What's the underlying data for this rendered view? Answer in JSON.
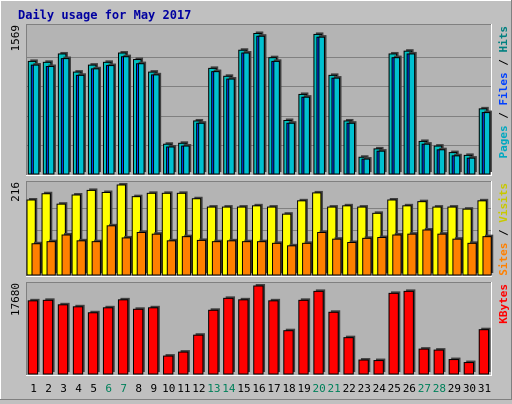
{
  "title": "Daily usage for May 2017",
  "colors": {
    "background": "#c0c0c0",
    "plot_bg": "#b4b4b4",
    "title": "#0000a0",
    "hits": "#00c0c0",
    "files": "#0040ff",
    "pages": "#00c0d0",
    "visits": "#ffff00",
    "sites": "#ff8000",
    "kbytes": "#ff0000",
    "grid": "#808080",
    "weekend_day": "#00805a"
  },
  "legends": {
    "top": [
      {
        "text": "Pages",
        "color": "#00a8c0"
      },
      {
        "text": " / ",
        "color": "#000000"
      },
      {
        "text": "Files",
        "color": "#0040ff"
      },
      {
        "text": " / ",
        "color": "#000000"
      },
      {
        "text": "Hits",
        "color": "#008080"
      }
    ],
    "middle": [
      {
        "text": "Sites",
        "color": "#ff8000"
      },
      {
        "text": " / ",
        "color": "#000000"
      },
      {
        "text": "Visits",
        "color": "#c8c800"
      }
    ],
    "bottom": [
      {
        "text": "KBytes",
        "color": "#ff0000"
      }
    ]
  },
  "chart_data": {
    "type": "bar",
    "title": "Daily usage for May 2017",
    "categories": [
      "1",
      "2",
      "3",
      "4",
      "5",
      "6",
      "7",
      "8",
      "9",
      "10",
      "11",
      "12",
      "13",
      "14",
      "15",
      "16",
      "17",
      "18",
      "19",
      "20",
      "21",
      "22",
      "23",
      "24",
      "25",
      "26",
      "27",
      "28",
      "29",
      "30",
      "31"
    ],
    "weekend_days": [
      "6",
      "7",
      "13",
      "14",
      "20",
      "21",
      "27",
      "28"
    ],
    "panels": [
      {
        "id": "top",
        "max_label": "1569",
        "ylim": [
          0,
          1569
        ],
        "series": [
          {
            "name": "Hits",
            "values": [
              1210,
              1200,
              1290,
              1095,
              1170,
              1200,
              1300,
              1230,
              1095,
              320,
              330,
              570,
              1135,
              1050,
              1330,
              1510,
              1250,
              575,
              855,
              1500,
              1060,
              570,
              180,
              270,
              1290,
              1320,
              350,
              300,
              230,
              200,
              700
            ]
          },
          {
            "name": "Files",
            "values": [
              1170,
              1155,
              1240,
              1060,
              1130,
              1165,
              1260,
              1185,
              1065,
              290,
              300,
              545,
              1100,
              1020,
              1300,
              1480,
              1210,
              545,
              825,
              1470,
              1030,
              545,
              160,
              245,
              1250,
              1290,
              320,
              260,
              195,
              170,
              660
            ]
          },
          {
            "name": "Pages",
            "values": [
              1170,
              1155,
              1240,
              1060,
              1130,
              1165,
              1260,
              1185,
              1065,
              290,
              300,
              545,
              1100,
              1020,
              1300,
              1480,
              1210,
              545,
              825,
              1470,
              1030,
              545,
              160,
              245,
              1250,
              1290,
              320,
              260,
              195,
              170,
              660
            ]
          }
        ]
      },
      {
        "id": "middle",
        "max_label": "216",
        "ylim": [
          0,
          216
        ],
        "series": [
          {
            "name": "Visits",
            "values": [
              180,
              195,
              170,
              192,
              203,
              198,
              216,
              188,
              196,
              196,
              196,
              183,
              163,
              163,
              163,
              166,
              163,
              146,
              178,
              197,
              163,
              166,
              163,
              148,
              180,
              166,
              176,
              163,
              163,
              158,
              178
            ]
          },
          {
            "name": "Sites",
            "values": [
              75,
              80,
              96,
              82,
              80,
              118,
              89,
              102,
              98,
              82,
              92,
              83,
              80,
              82,
              80,
              80,
              76,
              70,
              76,
              102,
              86,
              78,
              88,
              90,
              96,
              98,
              108,
              98,
              86,
              76,
              92
            ]
          }
        ]
      },
      {
        "id": "bottom",
        "max_label": "17680",
        "ylim": [
          0,
          17680
        ],
        "series": [
          {
            "name": "KBytes",
            "values": [
              14700,
              14800,
              13900,
              13500,
              12300,
              13300,
              14900,
              13000,
              13300,
              3600,
              4400,
              7800,
              12800,
              15200,
              14900,
              17680,
              14700,
              8700,
              14800,
              16600,
              12400,
              7300,
              2800,
              2700,
              16200,
              16600,
              5000,
              4800,
              2900,
              2300,
              8900
            ]
          }
        ]
      }
    ]
  }
}
